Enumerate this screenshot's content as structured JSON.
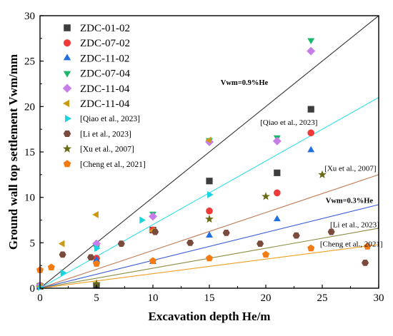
{
  "chart_data": {
    "type": "scatter",
    "xlabel": "Excavation depth He/m",
    "ylabel": "Ground wall top settlement Vwm/mm",
    "xlim": [
      0,
      30
    ],
    "ylim": [
      0,
      30
    ],
    "xticks": [
      "0",
      "5",
      "10",
      "15",
      "20",
      "25",
      "30"
    ],
    "yticks": [
      "0",
      "5",
      "10",
      "15",
      "20",
      "25",
      "30"
    ],
    "legend_position": "top-left",
    "series": [
      {
        "name": "ZDC-01-02",
        "marker": "square",
        "color": "#3d3d3d",
        "points": [
          [
            0,
            0.2
          ],
          [
            5,
            0.3
          ],
          [
            10,
            6.4
          ],
          [
            15,
            11.8
          ],
          [
            21,
            12.7
          ],
          [
            24,
            19.7
          ]
        ]
      },
      {
        "name": "ZDC-07-02",
        "marker": "circle",
        "color": "#f03a3a",
        "points": [
          [
            0,
            0.3
          ],
          [
            5,
            3.3
          ],
          [
            10,
            6.4
          ],
          [
            15,
            8.5
          ],
          [
            21,
            10.5
          ],
          [
            24,
            17.1
          ]
        ]
      },
      {
        "name": "ZDC-11-02",
        "marker": "triangle-up",
        "color": "#1f6fe0",
        "points": [
          [
            0,
            0.2
          ],
          [
            5,
            3.1
          ],
          [
            10,
            2.9
          ],
          [
            15,
            5.8
          ],
          [
            21,
            7.6
          ],
          [
            24,
            15.2
          ]
        ]
      },
      {
        "name": "ZDC-07-04",
        "marker": "triangle-down",
        "color": "#1ab86b",
        "points": [
          [
            0,
            0.3
          ],
          [
            5,
            4.5
          ],
          [
            10,
            8.2
          ],
          [
            15,
            16.3
          ],
          [
            21,
            16.6
          ],
          [
            24,
            27.3
          ]
        ]
      },
      {
        "name": "ZDC-11-04",
        "marker": "diamond",
        "color": "#c77de8",
        "points": [
          [
            0,
            0.3
          ],
          [
            5,
            4.9
          ],
          [
            10,
            7.9
          ],
          [
            15,
            16.1
          ],
          [
            21,
            16.2
          ],
          [
            24,
            26.1
          ]
        ]
      },
      {
        "name": "ZDC-11-04",
        "marker": "triangle-left",
        "color": "#cc9a12",
        "points": [
          [
            0,
            0.2
          ],
          [
            2,
            4.9
          ],
          [
            5,
            8.1
          ],
          [
            10,
            6.3
          ],
          [
            15,
            16.3
          ]
        ]
      },
      {
        "name": "[Qiao et al., 2023]",
        "marker": "triangle-right",
        "color": "#17d4e0",
        "points": [
          [
            0,
            0.1
          ],
          [
            2,
            1.7
          ],
          [
            5,
            4.4
          ],
          [
            9,
            7.5
          ],
          [
            15,
            10.3
          ]
        ]
      },
      {
        "name": "[Li et al., 2023]",
        "marker": "hexagon",
        "color": "#7a4a3c",
        "points": [
          [
            2,
            3.7
          ],
          [
            4.5,
            3.4
          ],
          [
            7.2,
            4.9
          ],
          [
            10.2,
            6.2
          ],
          [
            13.3,
            5.0
          ],
          [
            16.5,
            6.1
          ],
          [
            19.5,
            4.9
          ],
          [
            22.7,
            5.8
          ],
          [
            25.8,
            6.2
          ],
          [
            28.8,
            2.8
          ]
        ]
      },
      {
        "name": "[Xu et al., 2007]",
        "marker": "star",
        "color": "#6b6a14",
        "points": [
          [
            5,
            0.5
          ],
          [
            15,
            7.6
          ],
          [
            20,
            10.1
          ],
          [
            25,
            12.5
          ]
        ]
      },
      {
        "name": "[Cheng et al., 2021]",
        "marker": "pentagon",
        "color": "#f47a12",
        "points": [
          [
            0,
            2.0
          ],
          [
            1,
            2.3
          ],
          [
            5,
            2.7
          ],
          [
            10,
            3.0
          ],
          [
            15,
            3.3
          ],
          [
            20,
            3.7
          ],
          [
            24,
            4.4
          ],
          [
            29,
            4.6
          ]
        ]
      }
    ],
    "lines": [
      {
        "label": "Vwm=0.9%He",
        "color": "#303030",
        "from": [
          0,
          0
        ],
        "to": [
          31,
          31
        ]
      },
      {
        "label": "[Qiao et al., 2023]",
        "color": "#2ee0e8",
        "from": [
          0,
          0
        ],
        "to": [
          30,
          21
        ]
      },
      {
        "label": "[Xu et al., 2007]",
        "color": "#c07a55",
        "from": [
          0,
          0
        ],
        "to": [
          30,
          12.5
        ]
      },
      {
        "label": "Vwm=0.3%He",
        "color": "#3a5bd9",
        "from": [
          0,
          0
        ],
        "to": [
          30,
          9.2
        ]
      },
      {
        "label": "[Li et al., 2023]",
        "color": "#8a8a40",
        "from": [
          0,
          0
        ],
        "to": [
          30,
          6.6
        ]
      },
      {
        "label": "[Cheng et al., 2021]",
        "color": "#f0a020",
        "from": [
          0,
          0
        ],
        "to": [
          30,
          4.8
        ]
      }
    ],
    "annotations": [
      {
        "text": "Vwm=0.9%He",
        "at": [
          16,
          22.4
        ],
        "style": "bold"
      },
      {
        "text": "[Qiao et al., 2023]",
        "at": [
          19.5,
          18.0
        ],
        "style": "normal"
      },
      {
        "text": "[Xu et al., 2007]",
        "at": [
          25.2,
          12.9
        ],
        "style": "normal"
      },
      {
        "text": "Vwm=0.3%He",
        "at": [
          25.3,
          9.4
        ],
        "style": "bold"
      },
      {
        "text": "[Li et al., 2023]",
        "at": [
          25.7,
          6.7
        ],
        "style": "normal"
      },
      {
        "text": "[Cheng et al., 2021]",
        "at": [
          24.8,
          4.6
        ],
        "style": "normal"
      }
    ]
  }
}
